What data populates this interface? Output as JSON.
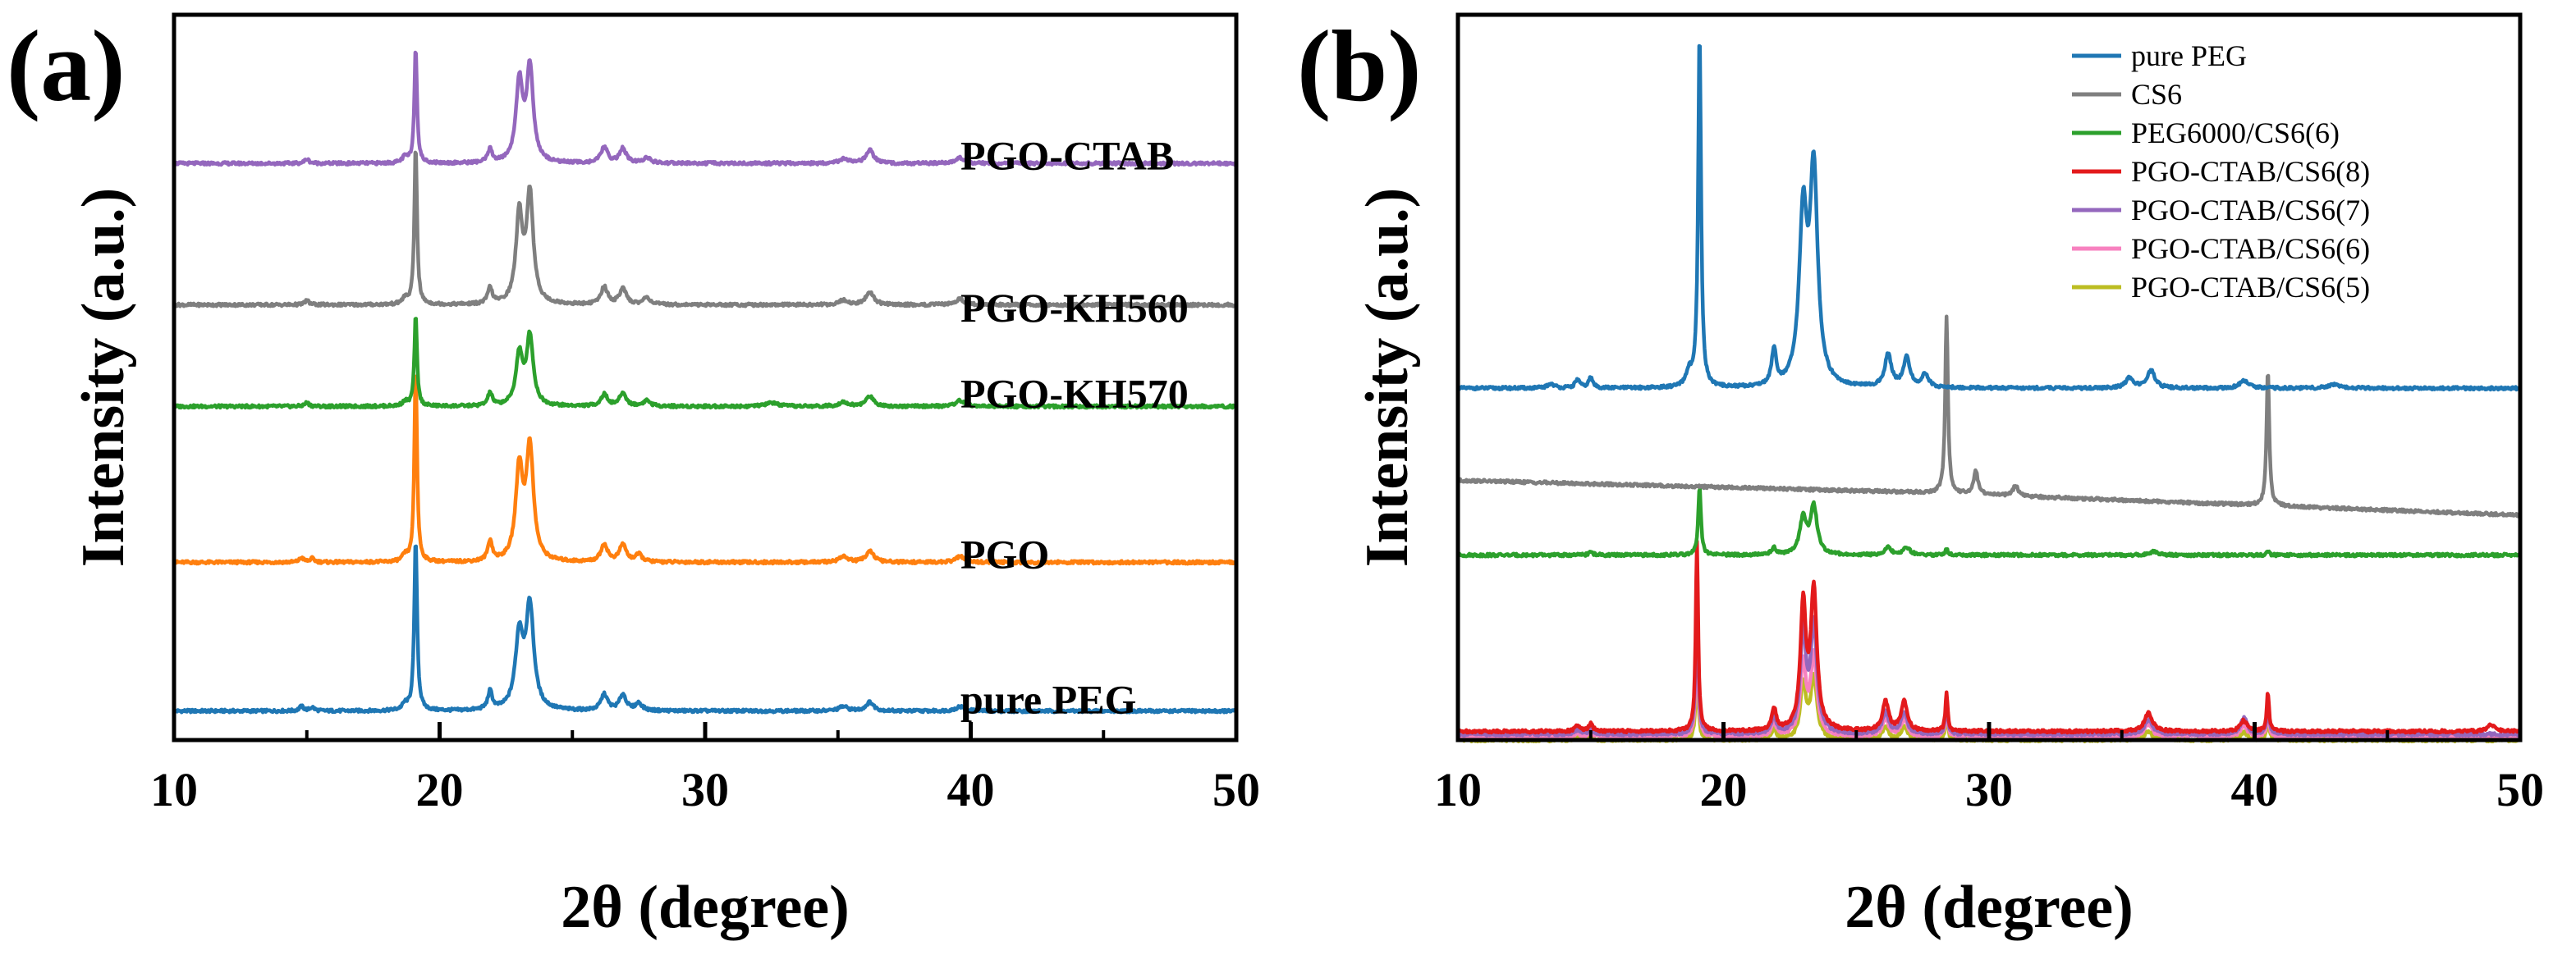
{
  "chart_data": [
    {
      "type": "line",
      "panel_label": "(a)",
      "title": "",
      "xlabel": "2θ (degree)",
      "ylabel": "Intensity (a.u.)",
      "xlim": [
        10,
        50
      ],
      "xticks": [
        10,
        20,
        30,
        40,
        50
      ],
      "xtick_labels": [
        "10",
        "20",
        "30",
        "40",
        "50"
      ],
      "y_units": "stacked intensity (a.u.), offset per trace",
      "ylim": [
        0,
        1000
      ],
      "grid": false,
      "series": [
        {
          "name": "pure PEG",
          "label": "pure PEG",
          "color": "#1f77b4",
          "offset": 40,
          "peaks": [
            [
              14.8,
              6,
              0.2
            ],
            [
              15.2,
              5,
              0.2
            ],
            [
              18.7,
              8,
              0.25
            ],
            [
              19.1,
              235,
              0.13
            ],
            [
              21.9,
              25,
              0.2
            ],
            [
              23.0,
              100,
              0.35
            ],
            [
              23.4,
              140,
              0.35
            ],
            [
              26.2,
              22,
              0.3
            ],
            [
              26.9,
              22,
              0.3
            ],
            [
              27.5,
              10,
              0.3
            ],
            [
              35.2,
              6,
              0.4
            ],
            [
              36.2,
              12,
              0.35
            ],
            [
              39.6,
              6,
              0.4
            ]
          ]
        },
        {
          "name": "PGO",
          "label": "PGO",
          "color": "#ff7f0e",
          "offset": 245,
          "peaks": [
            [
              14.8,
              6,
              0.2
            ],
            [
              15.2,
              5,
              0.2
            ],
            [
              18.7,
              8,
              0.25
            ],
            [
              19.1,
              270,
              0.12
            ],
            [
              21.9,
              28,
              0.2
            ],
            [
              23.0,
              125,
              0.32
            ],
            [
              23.4,
              155,
              0.32
            ],
            [
              26.2,
              24,
              0.3
            ],
            [
              26.9,
              24,
              0.3
            ],
            [
              27.5,
              10,
              0.3
            ],
            [
              35.2,
              8,
              0.4
            ],
            [
              36.2,
              16,
              0.35
            ],
            [
              39.6,
              8,
              0.4
            ]
          ]
        },
        {
          "name": "PGO-KH570",
          "label": "PGO-KH570",
          "color": "#2ca02c",
          "offset": 460,
          "peaks": [
            [
              15.0,
              5,
              0.2
            ],
            [
              18.7,
              6,
              0.25
            ],
            [
              19.1,
              125,
              0.12
            ],
            [
              21.9,
              18,
              0.2
            ],
            [
              23.0,
              70,
              0.3
            ],
            [
              23.4,
              95,
              0.3
            ],
            [
              26.2,
              16,
              0.3
            ],
            [
              26.9,
              18,
              0.3
            ],
            [
              27.8,
              8,
              0.3
            ],
            [
              32.5,
              5,
              0.5
            ],
            [
              35.2,
              6,
              0.4
            ],
            [
              36.2,
              14,
              0.35
            ],
            [
              39.6,
              8,
              0.4
            ]
          ]
        },
        {
          "name": "PGO-KH560",
          "label": "PGO-KH560",
          "color": "#7f7f7f",
          "offset": 600,
          "peaks": [
            [
              15.0,
              6,
              0.2
            ],
            [
              18.7,
              8,
              0.25
            ],
            [
              19.1,
              220,
              0.12
            ],
            [
              21.9,
              22,
              0.2
            ],
            [
              23.0,
              120,
              0.3
            ],
            [
              23.4,
              150,
              0.3
            ],
            [
              26.2,
              24,
              0.3
            ],
            [
              26.9,
              22,
              0.3
            ],
            [
              27.8,
              10,
              0.3
            ],
            [
              35.2,
              6,
              0.4
            ],
            [
              36.2,
              18,
              0.35
            ],
            [
              39.6,
              8,
              0.4
            ]
          ]
        },
        {
          "name": "PGO-CTAB",
          "label": "PGO-CTAB",
          "color": "#9467bd",
          "offset": 795,
          "peaks": [
            [
              15.0,
              6,
              0.2
            ],
            [
              18.7,
              8,
              0.25
            ],
            [
              19.1,
              160,
              0.12
            ],
            [
              21.9,
              18,
              0.2
            ],
            [
              23.0,
              110,
              0.3
            ],
            [
              23.4,
              130,
              0.3
            ],
            [
              26.2,
              22,
              0.3
            ],
            [
              26.9,
              20,
              0.3
            ],
            [
              27.8,
              8,
              0.3
            ],
            [
              35.2,
              6,
              0.4
            ],
            [
              36.2,
              18,
              0.35
            ],
            [
              39.6,
              8,
              0.4
            ]
          ]
        }
      ]
    },
    {
      "type": "line",
      "panel_label": "(b)",
      "title": "",
      "xlabel": "2θ (degree)",
      "ylabel": "Intensity (a.u.)",
      "xlim": [
        10,
        50
      ],
      "xticks": [
        10,
        20,
        30,
        40,
        50
      ],
      "xtick_labels": [
        "10",
        "20",
        "30",
        "40",
        "50"
      ],
      "y_units": "stacked intensity (a.u.), offset per trace",
      "ylim": [
        0,
        1000
      ],
      "grid": false,
      "legend_position": "top-right",
      "series": [
        {
          "name": "pure PEG",
          "color": "#1f77b4",
          "offset": 485,
          "peaks": [
            [
              13.5,
              6,
              0.3
            ],
            [
              14.5,
              12,
              0.2
            ],
            [
              15.0,
              14,
              0.2
            ],
            [
              18.7,
              20,
              0.25
            ],
            [
              19.1,
              490,
              0.13
            ],
            [
              21.9,
              50,
              0.2
            ],
            [
              23.0,
              230,
              0.35
            ],
            [
              23.4,
              290,
              0.35
            ],
            [
              26.2,
              45,
              0.3
            ],
            [
              26.9,
              40,
              0.3
            ],
            [
              27.6,
              18,
              0.3
            ],
            [
              35.3,
              14,
              0.35
            ],
            [
              36.1,
              24,
              0.35
            ],
            [
              39.6,
              10,
              0.4
            ],
            [
              43.0,
              5,
              0.6
            ]
          ]
        },
        {
          "name": "CS6",
          "color": "#7f7f7f",
          "offset": 320,
          "slope": [
            0,
            1.5,
            24,
            -2.2
          ],
          "peaks": [
            [
              28.4,
              245,
              0.12
            ],
            [
              29.5,
              32,
              0.2
            ],
            [
              31.0,
              14,
              0.25
            ],
            [
              40.5,
              190,
              0.12
            ]
          ]
        },
        {
          "name": "PEG6000/CS6(6)",
          "color": "#2ca02c",
          "offset": 255,
          "peaks": [
            [
              15.0,
              4,
              0.2
            ],
            [
              19.1,
              95,
              0.12
            ],
            [
              21.9,
              10,
              0.2
            ],
            [
              23.0,
              50,
              0.3
            ],
            [
              23.4,
              65,
              0.3
            ],
            [
              26.2,
              10,
              0.3
            ],
            [
              26.9,
              10,
              0.3
            ],
            [
              28.4,
              8,
              0.12
            ],
            [
              36.2,
              5,
              0.35
            ],
            [
              40.5,
              6,
              0.12
            ]
          ]
        },
        {
          "name": "PGO-CTAB/CS6(8)",
          "color": "#e31a1c",
          "offset": 12,
          "peaks": [
            [
              14.5,
              8,
              0.2
            ],
            [
              15.0,
              10,
              0.2
            ],
            [
              19.0,
              260,
              0.11
            ],
            [
              21.9,
              30,
              0.2
            ],
            [
              23.0,
              170,
              0.25
            ],
            [
              23.4,
              190,
              0.28
            ],
            [
              26.1,
              40,
              0.28
            ],
            [
              26.8,
              40,
              0.28
            ],
            [
              28.4,
              55,
              0.1
            ],
            [
              36.0,
              25,
              0.35
            ],
            [
              39.6,
              15,
              0.3
            ],
            [
              40.5,
              55,
              0.1
            ],
            [
              48.9,
              10,
              0.3
            ]
          ]
        },
        {
          "name": "PGO-CTAB/CS6(7)",
          "color": "#9467bd",
          "offset": 8,
          "peaks": [
            [
              14.5,
              6,
              0.2
            ],
            [
              15.0,
              8,
              0.2
            ],
            [
              19.0,
              200,
              0.11
            ],
            [
              21.9,
              24,
              0.2
            ],
            [
              23.0,
              140,
              0.25
            ],
            [
              23.4,
              150,
              0.28
            ],
            [
              26.1,
              30,
              0.28
            ],
            [
              26.8,
              30,
              0.28
            ],
            [
              28.4,
              50,
              0.1
            ],
            [
              36.0,
              20,
              0.35
            ],
            [
              39.6,
              22,
              0.3
            ],
            [
              40.5,
              50,
              0.1
            ]
          ]
        },
        {
          "name": "PGO-CTAB/CS6(6)",
          "color": "#f781bf",
          "offset": 5,
          "peaks": [
            [
              14.5,
              5,
              0.2
            ],
            [
              15.0,
              6,
              0.2
            ],
            [
              19.0,
              150,
              0.11
            ],
            [
              21.9,
              20,
              0.2
            ],
            [
              23.0,
              100,
              0.25
            ],
            [
              23.4,
              110,
              0.28
            ],
            [
              26.1,
              24,
              0.28
            ],
            [
              26.8,
              24,
              0.28
            ],
            [
              28.4,
              46,
              0.1
            ],
            [
              36.0,
              16,
              0.35
            ],
            [
              39.6,
              14,
              0.3
            ],
            [
              40.5,
              44,
              0.1
            ]
          ]
        },
        {
          "name": "PGO-CTAB/CS6(5)",
          "color": "#bcbd22",
          "offset": 0,
          "peaks": [
            [
              14.5,
              4,
              0.2
            ],
            [
              15.0,
              5,
              0.2
            ],
            [
              19.0,
              110,
              0.11
            ],
            [
              21.9,
              15,
              0.2
            ],
            [
              23.0,
              75,
              0.25
            ],
            [
              23.4,
              85,
              0.28
            ],
            [
              26.1,
              18,
              0.28
            ],
            [
              26.8,
              18,
              0.28
            ],
            [
              28.4,
              40,
              0.1
            ],
            [
              36.0,
              12,
              0.35
            ],
            [
              39.6,
              10,
              0.3
            ],
            [
              40.5,
              40,
              0.1
            ]
          ]
        }
      ]
    }
  ]
}
